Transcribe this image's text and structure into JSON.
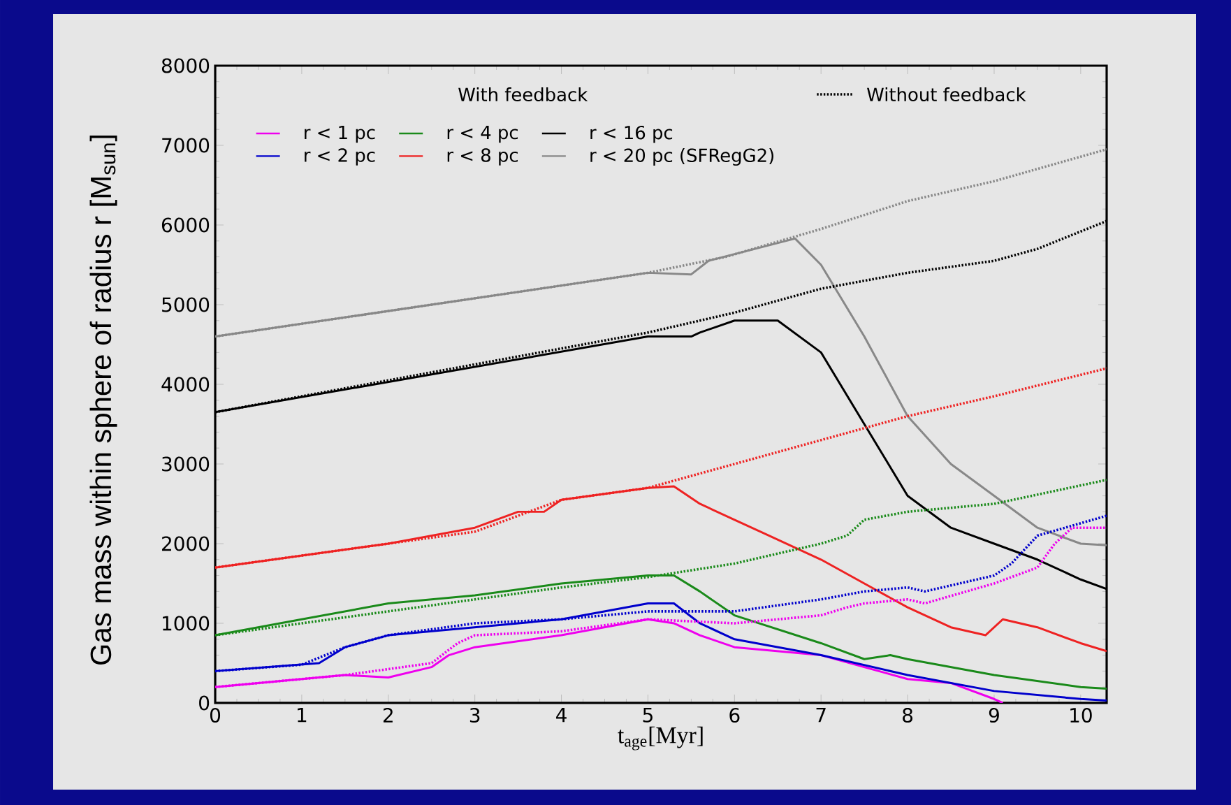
{
  "chart_data": {
    "type": "line",
    "xlabel": "t$_{age}$[Myr]",
    "ylabel": "Gas mass within sphere of radius r [M$_{sun}$]",
    "legend_title": "With feedback",
    "annotations": [
      "Without feedback"
    ],
    "xlim": [
      0,
      10.3
    ],
    "ylim": [
      0,
      8000
    ],
    "xticks": [
      0,
      1,
      2,
      3,
      4,
      5,
      6,
      7,
      8,
      9,
      10
    ],
    "yticks": [
      0,
      1000,
      2000,
      3000,
      4000,
      5000,
      6000,
      7000,
      8000
    ],
    "grid": false,
    "legend": "top left",
    "marker": "none",
    "series": [
      {
        "name": "r < 1 pc",
        "color": "#ee00ee",
        "line_style": "solid",
        "x": [
          0,
          1,
          1.5,
          2,
          2.5,
          2.7,
          3,
          4,
          5,
          5.3,
          5.6,
          6,
          7,
          8,
          8.5,
          9,
          9.1
        ],
        "values": [
          200,
          300,
          350,
          320,
          450,
          600,
          700,
          850,
          1050,
          1000,
          850,
          700,
          600,
          300,
          250,
          50,
          0
        ]
      },
      {
        "name": "r < 2 pc",
        "color": "#0000cc",
        "line_style": "solid",
        "x": [
          0,
          1.2,
          1.5,
          2,
          3,
          4,
          5,
          5.3,
          5.6,
          6,
          7,
          8,
          9,
          10,
          10.3
        ],
        "values": [
          400,
          500,
          700,
          850,
          950,
          1050,
          1250,
          1250,
          1000,
          800,
          600,
          350,
          150,
          50,
          30
        ]
      },
      {
        "name": "r < 4 pc",
        "color": "#1a8a1a",
        "line_style": "solid",
        "x": [
          0,
          1,
          2,
          3,
          4,
          5,
          5.3,
          5.6,
          6,
          7,
          7.5,
          7.8,
          8,
          9,
          10,
          10.3
        ],
        "values": [
          850,
          1050,
          1250,
          1350,
          1500,
          1600,
          1600,
          1400,
          1100,
          750,
          550,
          600,
          550,
          350,
          200,
          180
        ]
      },
      {
        "name": "r < 8 pc",
        "color": "#ee2222",
        "line_style": "solid",
        "x": [
          0,
          2,
          3,
          3.5,
          3.8,
          4,
          5,
          5.3,
          5.6,
          6,
          7,
          7.5,
          8,
          8.5,
          8.9,
          9.1,
          9.5,
          10,
          10.3
        ],
        "values": [
          1700,
          2000,
          2200,
          2400,
          2400,
          2550,
          2700,
          2720,
          2500,
          2300,
          1800,
          1500,
          1200,
          950,
          850,
          1050,
          950,
          750,
          650
        ]
      },
      {
        "name": "r < 16 pc",
        "color": "#000000",
        "line_style": "solid",
        "x": [
          0,
          5,
          5.5,
          5.6,
          6,
          6.5,
          7,
          7.5,
          8,
          8.5,
          9,
          9.5,
          10,
          10.3
        ],
        "values": [
          3650,
          4600,
          4600,
          4650,
          4800,
          4800,
          4400,
          3500,
          2600,
          2200,
          2000,
          1800,
          1550,
          1430
        ]
      },
      {
        "name": "r < 20 pc (SFRegG2)",
        "color": "#888888",
        "line_style": "solid",
        "x": [
          0,
          5,
          5.5,
          5.7,
          6.7,
          7,
          7.5,
          8,
          8.5,
          9,
          9.5,
          10,
          10.3
        ],
        "values": [
          4600,
          5400,
          5380,
          5550,
          5830,
          5500,
          4600,
          3600,
          3000,
          2600,
          2200,
          2000,
          1980
        ]
      },
      {
        "color": "#ee00ee",
        "line_style": "dotted",
        "x": [
          0,
          1.5,
          2.5,
          2.8,
          3,
          4,
          5,
          6,
          7,
          7.3,
          7.5,
          8,
          8.2,
          9,
          9.5,
          9.7,
          9.9,
          10.3
        ],
        "values": [
          200,
          350,
          500,
          750,
          850,
          900,
          1050,
          1000,
          1100,
          1200,
          1250,
          1300,
          1250,
          1500,
          1700,
          2000,
          2200,
          2200
        ]
      },
      {
        "color": "#0000cc",
        "line_style": "dotted",
        "x": [
          0,
          1,
          1.5,
          2,
          3,
          4,
          5,
          6,
          7,
          7.5,
          8,
          8.2,
          9,
          9.2,
          9.5,
          10.3
        ],
        "values": [
          400,
          480,
          700,
          850,
          1000,
          1050,
          1150,
          1150,
          1300,
          1400,
          1450,
          1400,
          1600,
          1750,
          2100,
          2350
        ]
      },
      {
        "color": "#1a8a1a",
        "line_style": "dotted",
        "x": [
          0,
          3,
          4,
          5,
          6,
          7,
          7.3,
          7.5,
          8,
          9,
          10.3
        ],
        "values": [
          850,
          1300,
          1450,
          1580,
          1750,
          2000,
          2100,
          2300,
          2400,
          2500,
          2800
        ]
      },
      {
        "color": "#ee2222",
        "line_style": "dotted",
        "x": [
          0,
          3,
          4,
          5,
          6,
          7,
          8,
          9,
          10.3
        ],
        "values": [
          1700,
          2150,
          2550,
          2700,
          3000,
          3300,
          3600,
          3850,
          4200
        ]
      },
      {
        "color": "#000000",
        "line_style": "dotted",
        "x": [
          0,
          5,
          6,
          7,
          8,
          9,
          9.5,
          10.3
        ],
        "values": [
          3650,
          4650,
          4900,
          5200,
          5400,
          5550,
          5700,
          6050
        ]
      },
      {
        "color": "#888888",
        "line_style": "dotted",
        "x": [
          0,
          5,
          5.9,
          7,
          8,
          9,
          10.3
        ],
        "values": [
          4600,
          5400,
          5600,
          5950,
          6300,
          6550,
          6950
        ]
      }
    ]
  }
}
